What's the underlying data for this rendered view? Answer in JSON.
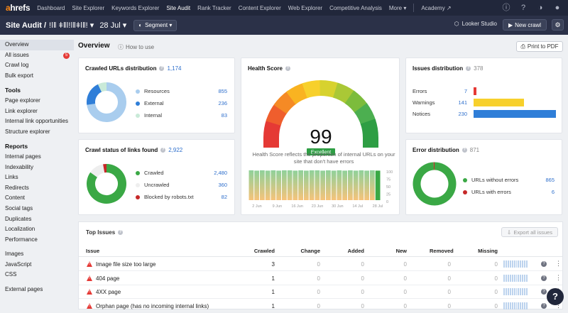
{
  "topnav": {
    "logo_a": "a",
    "logo_rest": "hrefs",
    "items": [
      "Dashboard",
      "Site Explorer",
      "Keywords Explorer",
      "Site Audit",
      "Rank Tracker",
      "Content Explorer",
      "Web Explorer",
      "Competitive Analysis",
      "More ▾",
      "Academy ↗"
    ],
    "active": "Site Audit"
  },
  "subnav": {
    "title": "Site Audit /",
    "project": "ǃǀǁ ǂǁǀǃǀǁǂǀǁǃ ▾",
    "date": "28 Jul ▾",
    "segment": "Segment ▾",
    "looker": "Looker Studio",
    "new_crawl": "New crawl"
  },
  "sidebar": {
    "group1": [
      "Overview",
      "All issues",
      "Crawl log",
      "Bulk export"
    ],
    "all_issues_badge": "5",
    "tools_header": "Tools",
    "tools": [
      "Page explorer",
      "Link explorer",
      "Internal link opportunities",
      "Structure explorer"
    ],
    "reports_header": "Reports",
    "reports": [
      "Internal pages",
      "Indexability",
      "Links",
      "Redirects",
      "Content",
      "Social tags",
      "Duplicates",
      "Localization",
      "Performance"
    ],
    "group4": [
      "Images",
      "JavaScript",
      "CSS"
    ],
    "group5": [
      "External pages"
    ]
  },
  "overview": {
    "title": "Overview",
    "howto": "How to use",
    "print": "Print to PDF"
  },
  "crawled_urls": {
    "title": "Crawled URLs distribution",
    "total": "1,174",
    "legend": [
      {
        "label": "Resources",
        "value": "855",
        "color": "#a9cdee"
      },
      {
        "label": "External",
        "value": "236",
        "color": "#2f7ed8"
      },
      {
        "label": "Internal",
        "value": "83",
        "color": "#c9ead8"
      }
    ]
  },
  "crawl_status": {
    "title": "Crawl status of links found",
    "total": "2,922",
    "legend": [
      {
        "label": "Crawled",
        "value": "2,480",
        "color": "#3aa845"
      },
      {
        "label": "Uncrawled",
        "value": "360",
        "color": "#eeeeee"
      },
      {
        "label": "Blocked by robots.txt",
        "value": "82",
        "color": "#c62828"
      }
    ]
  },
  "health": {
    "title": "Health Score",
    "score": "99",
    "badge": "Excellent",
    "gauge_value": 99,
    "desc": "Health Score reflects the proportion of internal URLs on your site that don't have errors",
    "history_values": [
      100,
      99,
      100,
      99,
      100,
      99,
      100,
      100,
      99,
      100,
      99,
      100,
      100,
      99,
      100,
      99,
      100,
      99,
      100,
      99,
      100,
      99,
      100,
      99
    ],
    "xticks": [
      "2 Jun",
      "9 Jun",
      "16 Jun",
      "23 Jun",
      "30 Jun",
      "14 Jul",
      "28 Jul"
    ],
    "yticks": [
      "100",
      "75",
      "50",
      "25",
      "0"
    ]
  },
  "issues_dist": {
    "title": "Issues distribution",
    "total": "378",
    "rows": [
      {
        "label": "Errors",
        "value": "7",
        "num": 7,
        "color": "#e53935"
      },
      {
        "label": "Warnings",
        "value": "141",
        "num": 141,
        "color": "#f7d02c"
      },
      {
        "label": "Notices",
        "value": "230",
        "num": 230,
        "color": "#2f7ed8"
      }
    ]
  },
  "error_dist": {
    "title": "Error distribution",
    "total": "871",
    "legend": [
      {
        "label": "URLs without errors",
        "value": "865",
        "color": "#3aa845"
      },
      {
        "label": "URLs with errors",
        "value": "6",
        "color": "#c62828"
      }
    ]
  },
  "top_issues": {
    "title": "Top Issues",
    "export": "Export all issues",
    "headers": [
      "Issue",
      "Crawled",
      "Change",
      "Added",
      "New",
      "Removed",
      "Missing"
    ],
    "rows": [
      {
        "issue": "Image file size too large",
        "crawled": "3",
        "change": "0",
        "added": "0",
        "new": "0",
        "removed": "0",
        "missing": "0"
      },
      {
        "issue": "404 page",
        "crawled": "1",
        "change": "0",
        "added": "0",
        "new": "0",
        "removed": "0",
        "missing": "0"
      },
      {
        "issue": "4XX page",
        "crawled": "1",
        "change": "0",
        "added": "0",
        "new": "0",
        "removed": "0",
        "missing": "0"
      },
      {
        "issue": "Orphan page (has no incoming internal links)",
        "crawled": "1",
        "change": "0",
        "added": "0",
        "new": "0",
        "removed": "0",
        "missing": "0"
      }
    ]
  },
  "icons": [
    "question-icon",
    "gear-icon",
    "info-icon",
    "external-link-icon",
    "printer-icon",
    "download-icon",
    "more-icon",
    "help-icon"
  ]
}
